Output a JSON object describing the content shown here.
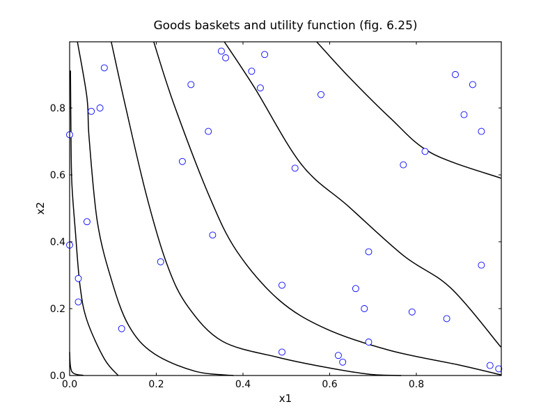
{
  "chart_data": {
    "type": "scatter",
    "title": "Goods baskets and utility function (fig. 6.25)",
    "xlabel": "x1",
    "ylabel": "x2",
    "xlim": [
      0.0,
      0.995
    ],
    "ylim": [
      0.0,
      0.998
    ],
    "grid": false,
    "legend": null,
    "x_ticks": [
      "0.0",
      "0.2",
      "0.4",
      "0.6",
      "0.8"
    ],
    "y_ticks": [
      "0.0",
      "0.2",
      "0.4",
      "0.6",
      "0.8"
    ],
    "series": [
      {
        "name": "goods baskets",
        "marker": "open-circle",
        "color": "#0000ff",
        "points": [
          [
            0.08,
            0.92
          ],
          [
            0.05,
            0.79
          ],
          [
            0.07,
            0.8
          ],
          [
            0.0,
            0.72
          ],
          [
            0.28,
            0.87
          ],
          [
            0.35,
            0.97
          ],
          [
            0.36,
            0.95
          ],
          [
            0.45,
            0.96
          ],
          [
            0.42,
            0.91
          ],
          [
            0.44,
            0.86
          ],
          [
            0.32,
            0.73
          ],
          [
            0.26,
            0.64
          ],
          [
            0.52,
            0.62
          ],
          [
            0.58,
            0.84
          ],
          [
            0.89,
            0.9
          ],
          [
            0.93,
            0.87
          ],
          [
            0.91,
            0.78
          ],
          [
            0.95,
            0.73
          ],
          [
            0.82,
            0.67
          ],
          [
            0.77,
            0.63
          ],
          [
            0.04,
            0.46
          ],
          [
            0.0,
            0.39
          ],
          [
            0.02,
            0.29
          ],
          [
            0.02,
            0.22
          ],
          [
            0.12,
            0.14
          ],
          [
            0.21,
            0.34
          ],
          [
            0.33,
            0.42
          ],
          [
            0.69,
            0.37
          ],
          [
            0.49,
            0.27
          ],
          [
            0.66,
            0.26
          ],
          [
            0.68,
            0.2
          ],
          [
            0.79,
            0.19
          ],
          [
            0.87,
            0.17
          ],
          [
            0.95,
            0.33
          ],
          [
            0.69,
            0.1
          ],
          [
            0.49,
            0.07
          ],
          [
            0.62,
            0.06
          ],
          [
            0.63,
            0.04
          ],
          [
            0.97,
            0.03
          ],
          [
            0.99,
            0.02
          ]
        ]
      }
    ],
    "contours": {
      "name": "utility function level curves",
      "color": "#000000",
      "curves": [
        [
          [
            0.0,
            0.07
          ],
          [
            0.005,
            0.012
          ],
          [
            0.032,
            0.0
          ]
        ],
        [
          [
            0.002,
            0.912
          ],
          [
            0.003,
            0.729
          ],
          [
            0.005,
            0.58
          ],
          [
            0.013,
            0.435
          ],
          [
            0.024,
            0.269
          ],
          [
            0.04,
            0.165
          ],
          [
            0.08,
            0.05
          ],
          [
            0.112,
            0.0
          ]
        ],
        [
          [
            0.018,
            0.998
          ],
          [
            0.04,
            0.831
          ],
          [
            0.045,
            0.71
          ],
          [
            0.064,
            0.46
          ],
          [
            0.096,
            0.288
          ],
          [
            0.136,
            0.15
          ],
          [
            0.193,
            0.067
          ],
          [
            0.289,
            0.013
          ],
          [
            0.378,
            0.0
          ]
        ],
        [
          [
            0.096,
            0.998
          ],
          [
            0.128,
            0.81
          ],
          [
            0.177,
            0.54
          ],
          [
            0.225,
            0.331
          ],
          [
            0.273,
            0.206
          ],
          [
            0.353,
            0.102
          ],
          [
            0.482,
            0.054
          ],
          [
            0.589,
            0.025
          ],
          [
            0.69,
            0.004
          ],
          [
            0.765,
            0.0
          ]
        ],
        [
          [
            0.194,
            0.998
          ],
          [
            0.241,
            0.81
          ],
          [
            0.321,
            0.54
          ],
          [
            0.385,
            0.373
          ],
          [
            0.482,
            0.227
          ],
          [
            0.591,
            0.14
          ],
          [
            0.739,
            0.075
          ],
          [
            0.9,
            0.031
          ],
          [
            0.995,
            0.002
          ]
        ],
        [
          [
            0.357,
            0.998
          ],
          [
            0.427,
            0.86
          ],
          [
            0.535,
            0.631
          ],
          [
            0.643,
            0.506
          ],
          [
            0.771,
            0.358
          ],
          [
            0.879,
            0.262
          ],
          [
            0.995,
            0.085
          ]
        ],
        [
          [
            0.357,
            0.998
          ],
          [
            0.427,
            0.86
          ],
          [
            0.535,
            0.631
          ],
          [
            0.643,
            0.506
          ],
          [
            0.771,
            0.358
          ],
          [
            0.879,
            0.262
          ],
          [
            0.995,
            0.085
          ]
        ],
        [
          [
            0.57,
            0.998
          ],
          [
            0.642,
            0.896
          ],
          [
            0.739,
            0.771
          ],
          [
            0.835,
            0.665
          ],
          [
            0.995,
            0.59
          ]
        ]
      ]
    }
  }
}
